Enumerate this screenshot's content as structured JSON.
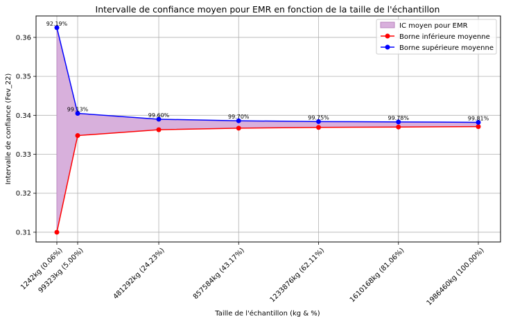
{
  "chart_data": {
    "type": "line",
    "title": "Intervalle de confiance moyen pour EMR en fonction de la taille de l'échantillon",
    "xlabel": "Taille de l'échantillon (kg & %)",
    "ylabel": "Intervalle de confiance (Fev_22)",
    "x": [
      1242,
      99323,
      481292,
      857584,
      1233876,
      1610168,
      1986460
    ],
    "x_tick_labels": [
      "1242kg (0.06%)",
      "99323kg (5.00%)",
      "481292kg (24.23%)",
      "857584kg (43.17%)",
      "1233876kg (62.11%)",
      "1610168kg (81.06%)",
      "1986460kg (100.00%)"
    ],
    "ylim": [
      0.3075,
      0.3655
    ],
    "y_ticks": [
      0.31,
      0.32,
      0.33,
      0.34,
      0.35,
      0.36
    ],
    "y_tick_labels": [
      "0.31",
      "0.32",
      "0.33",
      "0.34",
      "0.35",
      "0.36"
    ],
    "series": [
      {
        "name": "Borne inférieure moyenne",
        "color": "#ff0000",
        "values": [
          0.31,
          0.3348,
          0.3363,
          0.3367,
          0.3369,
          0.337,
          0.3371
        ]
      },
      {
        "name": "Borne supérieure moyenne",
        "color": "#0000ff",
        "values": [
          0.3625,
          0.3405,
          0.339,
          0.3386,
          0.3384,
          0.3383,
          0.3382
        ]
      }
    ],
    "fill": {
      "name": "IC moyen pour EMR",
      "color": "#d8b0dc",
      "edge": "#b884be"
    },
    "point_labels": [
      "92.19%",
      "99.13%",
      "99.60%",
      "99.70%",
      "99.75%",
      "99.78%",
      "99.81%"
    ],
    "grid": true,
    "legend_position": "top-right"
  }
}
